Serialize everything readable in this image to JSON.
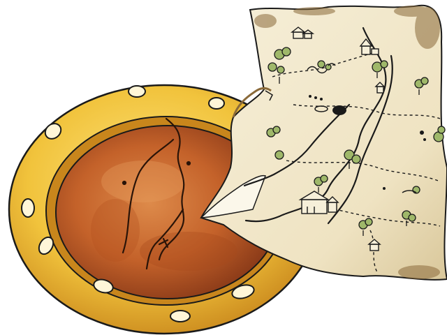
{
  "illustration": {
    "subject": "plate",
    "colors": {
      "background": "#ffffff",
      "rim_gold": "#f1c33c",
      "rim_shadow": "#c8861c",
      "rim_highlight": "#fde27a",
      "bowl_orange": "#c4622a",
      "bowl_light": "#dd8a4a",
      "bowl_dark": "#8a3a18",
      "paper": "#f3ead2",
      "paper_shade": "#d9c79a",
      "paper_burn": "#8a6a3a",
      "paper_shadow": "#3b3b3b",
      "ink": "#1a1a1a",
      "foliage_green": "#9fb86a"
    }
  }
}
